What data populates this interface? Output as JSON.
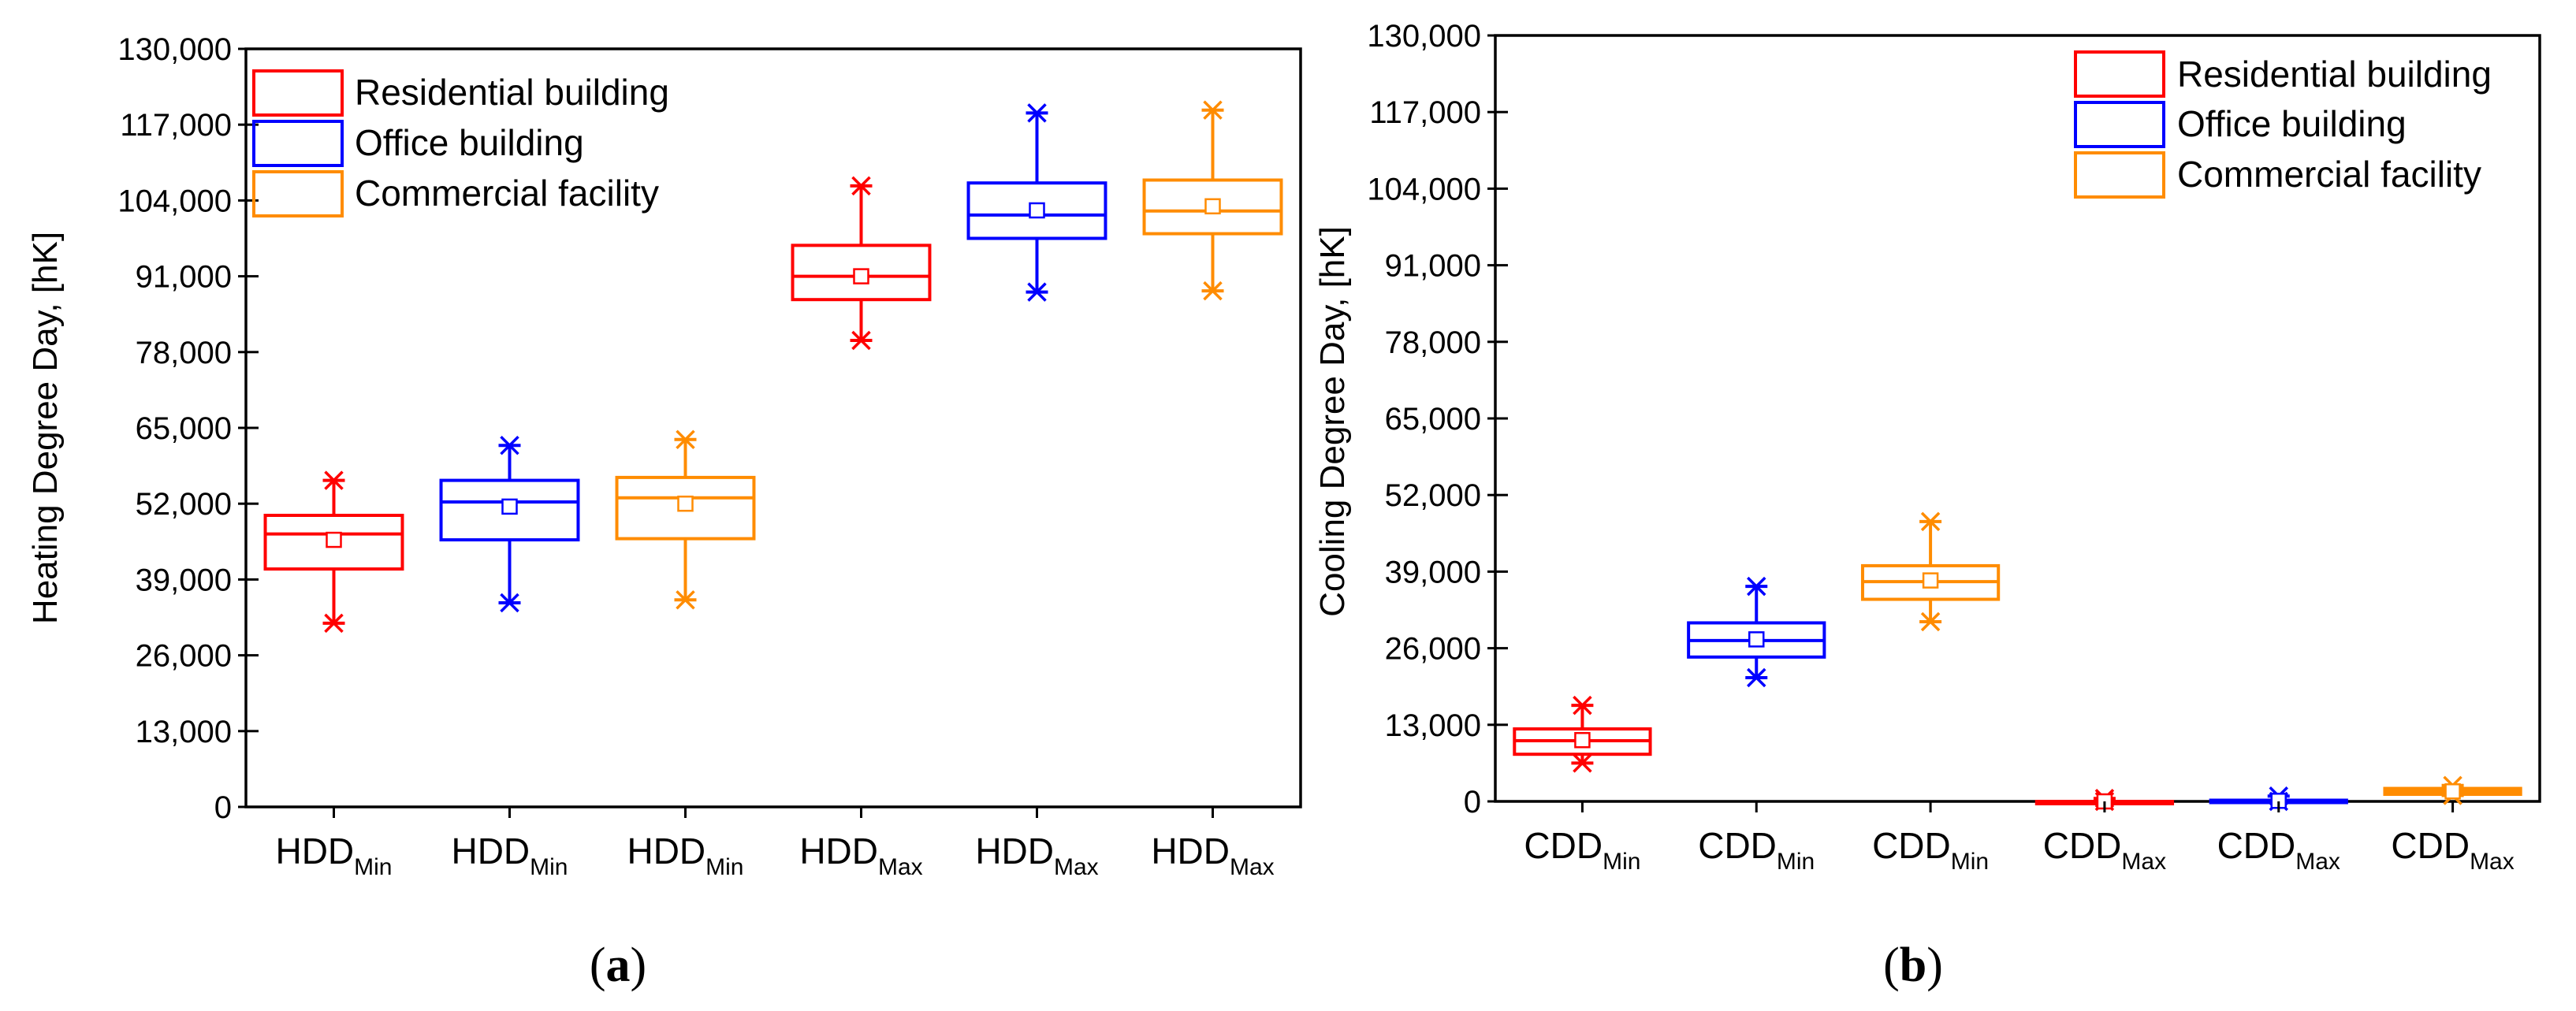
{
  "colors": {
    "residential": "#ff0000",
    "office": "#0000ff",
    "commercial": "#ff8c00",
    "axis": "#000000",
    "background": "#ffffff"
  },
  "legend": {
    "residential": "Residential building",
    "office": "Office building",
    "commercial": "Commercial facility"
  },
  "chart_data": [
    {
      "type": "box",
      "panel_label": {
        "open": "(",
        "letter": "a",
        "close": ")"
      },
      "ylabel": "Heating Degree Day, [hK]",
      "xlabel": "",
      "ylim": [
        0,
        130000
      ],
      "yticks": [
        "0",
        "13,000",
        "26,000",
        "39,000",
        "52,000",
        "65,000",
        "78,000",
        "91,000",
        "104,000",
        "117,000",
        "130,000"
      ],
      "legend_position": "top-left",
      "grid": false,
      "categories": [
        {
          "base": "HDD",
          "sub": "Min",
          "series": "residential",
          "min": 31500,
          "q1": 40800,
          "median": 46800,
          "q3": 50000,
          "max": 56000,
          "mean": 45800
        },
        {
          "base": "HDD",
          "sub": "Min",
          "series": "office",
          "min": 35000,
          "q1": 45800,
          "median": 52300,
          "q3": 56000,
          "max": 62000,
          "mean": 51500
        },
        {
          "base": "HDD",
          "sub": "Min",
          "series": "commercial",
          "min": 35500,
          "q1": 46000,
          "median": 53000,
          "q3": 56500,
          "max": 63000,
          "mean": 52000
        },
        {
          "base": "HDD",
          "sub": "Max",
          "series": "residential",
          "min": 80000,
          "q1": 87000,
          "median": 91000,
          "q3": 96300,
          "max": 106500,
          "mean": 91000
        },
        {
          "base": "HDD",
          "sub": "Max",
          "series": "office",
          "min": 88300,
          "q1": 97500,
          "median": 101500,
          "q3": 107000,
          "max": 119000,
          "mean": 102300
        },
        {
          "base": "HDD",
          "sub": "Max",
          "series": "commercial",
          "min": 88500,
          "q1": 98300,
          "median": 102200,
          "q3": 107500,
          "max": 119500,
          "mean": 103000
        }
      ]
    },
    {
      "type": "box",
      "panel_label": {
        "open": "(",
        "letter": "b",
        "close": ")"
      },
      "ylabel": "Cooling Degree Day, [hK]",
      "xlabel": "",
      "ylim": [
        0,
        130000
      ],
      "yticks": [
        "0",
        "13,000",
        "26,000",
        "39,000",
        "52,000",
        "65,000",
        "78,000",
        "91,000",
        "104,000",
        "117,000",
        "130,000"
      ],
      "legend_position": "top-right",
      "grid": false,
      "categories": [
        {
          "base": "CDD",
          "sub": "Min",
          "series": "residential",
          "min": 6500,
          "q1": 8000,
          "median": 10300,
          "q3": 12300,
          "max": 16300,
          "mean": 10400
        },
        {
          "base": "CDD",
          "sub": "Min",
          "series": "office",
          "min": 21000,
          "q1": 24500,
          "median": 27300,
          "q3": 30300,
          "max": 36500,
          "mean": 27500
        },
        {
          "base": "CDD",
          "sub": "Min",
          "series": "commercial",
          "min": 30500,
          "q1": 34300,
          "median": 37300,
          "q3": 40000,
          "max": 47500,
          "mean": 37500
        },
        {
          "base": "CDD",
          "sub": "Max",
          "series": "residential",
          "min": 0,
          "q1": 0,
          "median": 0,
          "q3": 0,
          "max": 500,
          "mean": 0
        },
        {
          "base": "CDD",
          "sub": "Max",
          "series": "office",
          "min": 0,
          "q1": 0,
          "median": 100,
          "q3": 200,
          "max": 900,
          "mean": 100
        },
        {
          "base": "CDD",
          "sub": "Max",
          "series": "commercial",
          "min": 1000,
          "q1": 1200,
          "median": 1800,
          "q3": 2200,
          "max": 2700,
          "mean": 1700
        }
      ]
    }
  ]
}
